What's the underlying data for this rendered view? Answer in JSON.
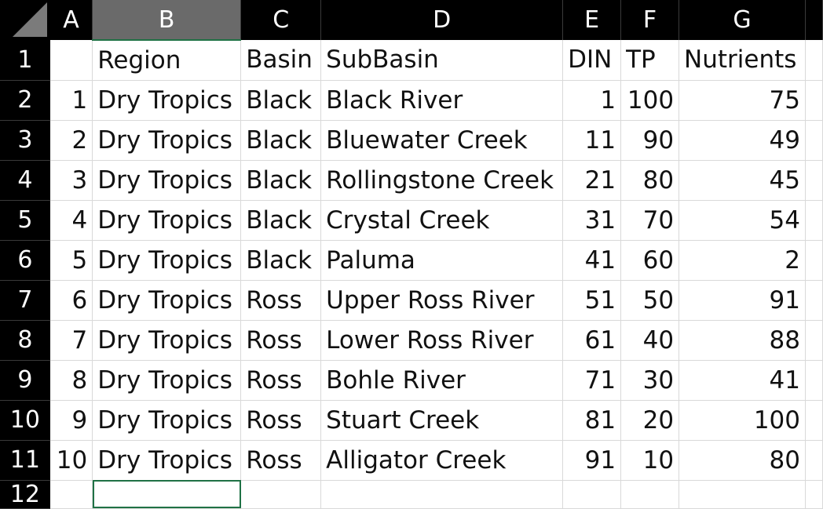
{
  "columns": [
    "A",
    "B",
    "C",
    "D",
    "E",
    "F",
    "G"
  ],
  "selected_column": "B",
  "rows": [
    {
      "row_num": "1",
      "cells": [
        "",
        "Region",
        "Basin",
        "SubBasin",
        "DIN",
        "TP",
        "Nutrients"
      ]
    },
    {
      "row_num": "2",
      "cells": [
        "1",
        "Dry Tropics",
        "Black",
        "Black River",
        "1",
        "100",
        "75"
      ]
    },
    {
      "row_num": "3",
      "cells": [
        "2",
        "Dry Tropics",
        "Black",
        "Bluewater Creek",
        "11",
        "90",
        "49"
      ]
    },
    {
      "row_num": "4",
      "cells": [
        "3",
        "Dry Tropics",
        "Black",
        "Rollingstone Creek",
        "21",
        "80",
        "45"
      ]
    },
    {
      "row_num": "5",
      "cells": [
        "4",
        "Dry Tropics",
        "Black",
        "Crystal Creek",
        "31",
        "70",
        "54"
      ]
    },
    {
      "row_num": "6",
      "cells": [
        "5",
        "Dry Tropics",
        "Black",
        "Paluma",
        "41",
        "60",
        "2"
      ]
    },
    {
      "row_num": "7",
      "cells": [
        "6",
        "Dry Tropics",
        "Ross",
        "Upper Ross River",
        "51",
        "50",
        "91"
      ]
    },
    {
      "row_num": "8",
      "cells": [
        "7",
        "Dry Tropics",
        "Ross",
        "Lower Ross River",
        "61",
        "40",
        "88"
      ]
    },
    {
      "row_num": "9",
      "cells": [
        "8",
        "Dry Tropics",
        "Ross",
        "Bohle River",
        "71",
        "30",
        "41"
      ]
    },
    {
      "row_num": "10",
      "cells": [
        "9",
        "Dry Tropics",
        "Ross",
        "Stuart Creek",
        "81",
        "20",
        "100"
      ]
    },
    {
      "row_num": "11",
      "cells": [
        "10",
        "Dry Tropics",
        "Ross",
        "Alligator Creek",
        "91",
        "10",
        "80"
      ]
    },
    {
      "row_num": "12",
      "cells": [
        "",
        "",
        "",
        "",
        "",
        "",
        ""
      ]
    }
  ],
  "colors": {
    "header_bg": "#000000",
    "selected_header_bg": "#6a6a6a",
    "selection_border": "#1f7145"
  },
  "icons": {
    "corner": "select-all-triangle-icon"
  }
}
